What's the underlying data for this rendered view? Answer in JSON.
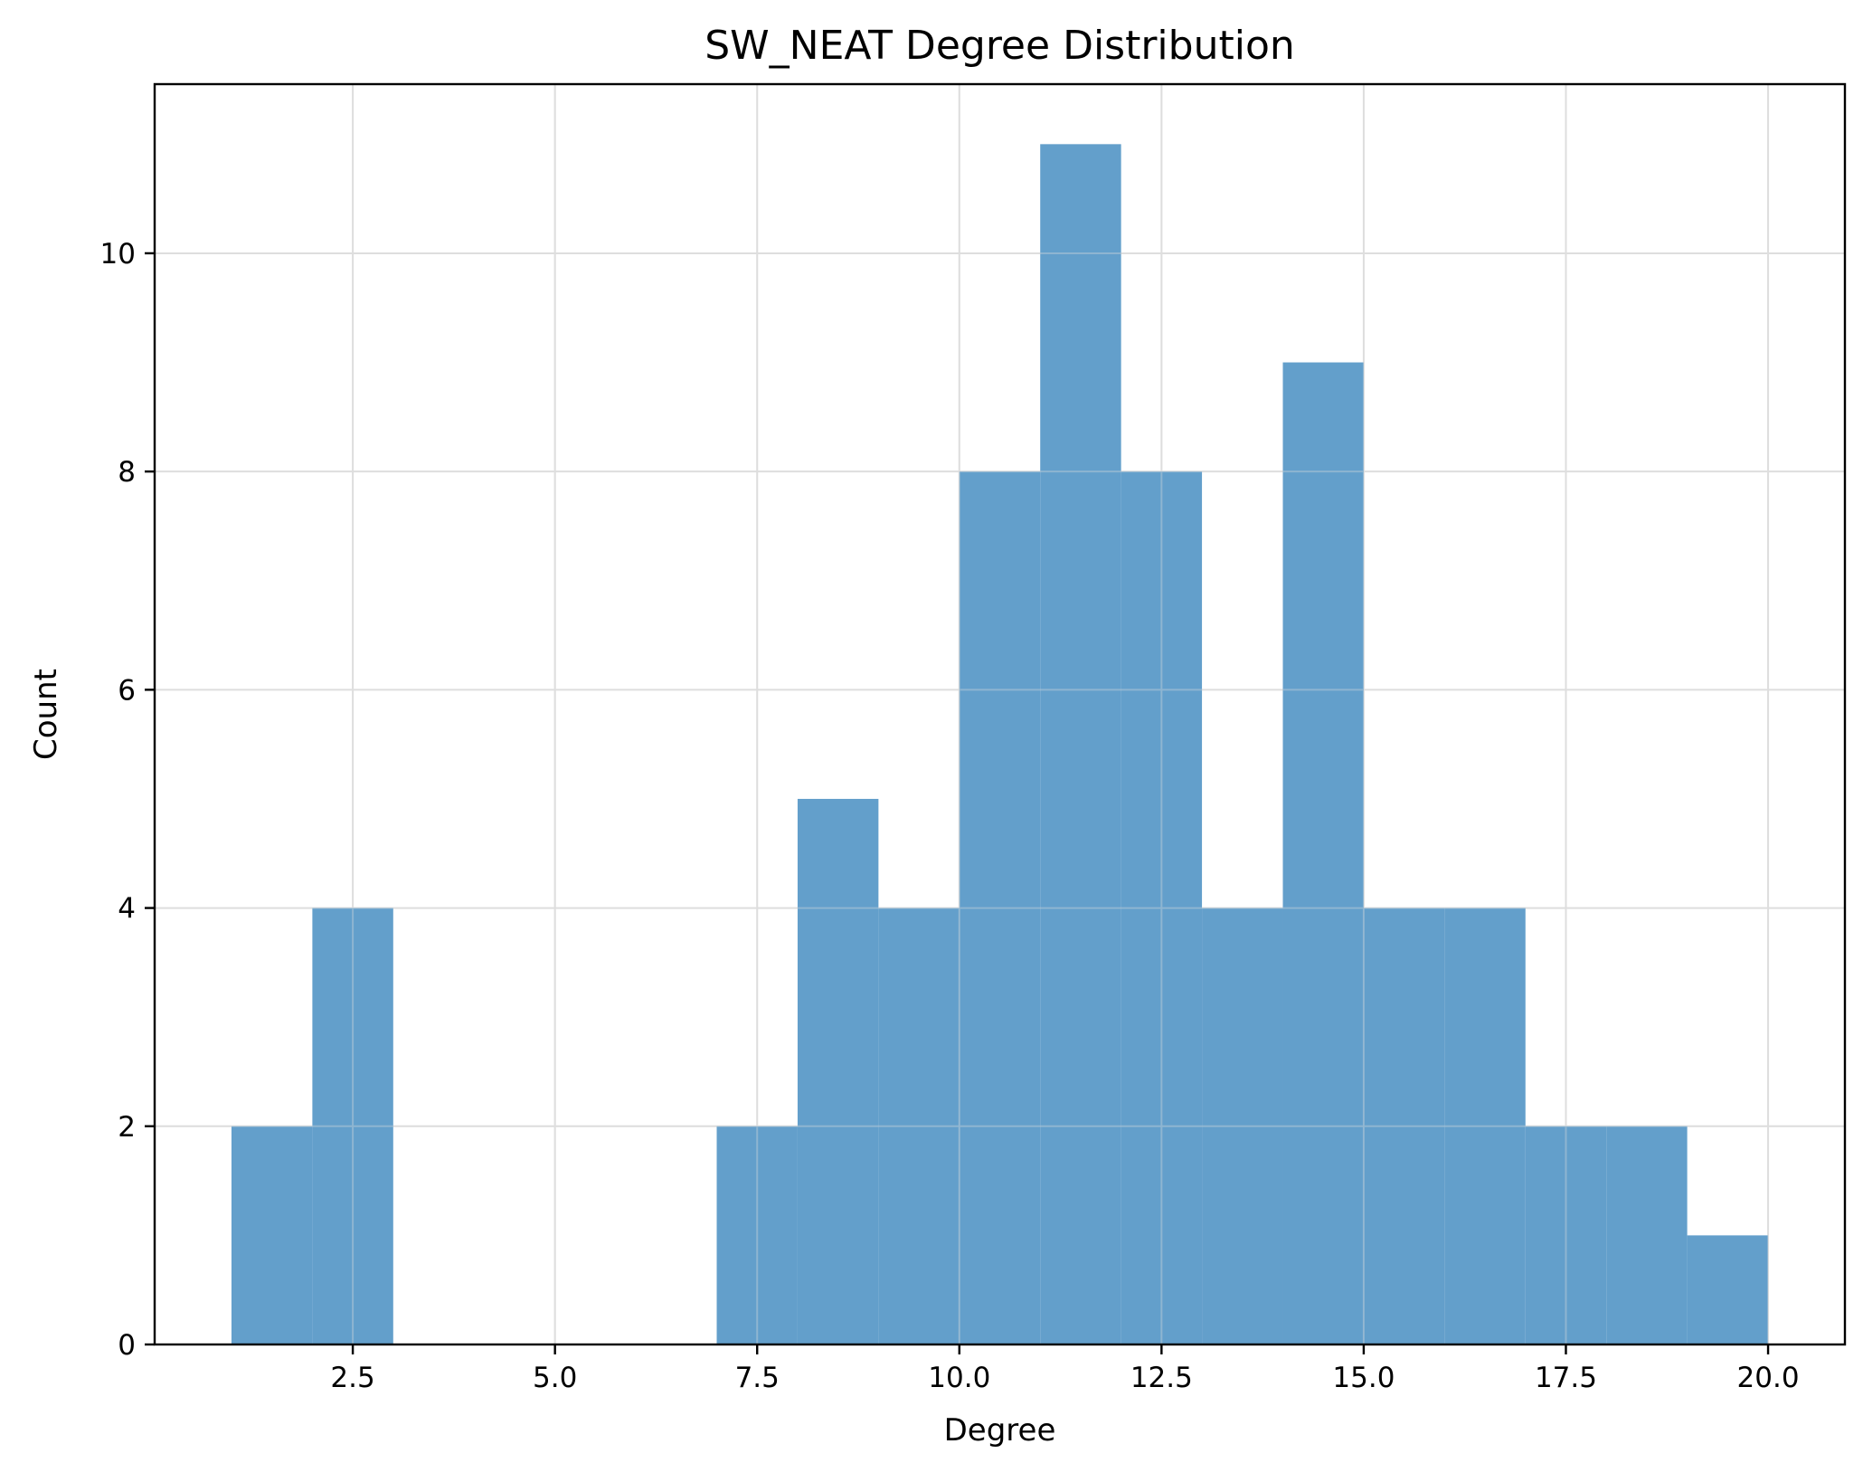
{
  "chart_data": {
    "type": "bar",
    "title": "SW_NEAT Degree Distribution",
    "xlabel": "Degree",
    "ylabel": "Count",
    "xlim": [
      0.05,
      20.95
    ],
    "ylim": [
      0,
      11.55
    ],
    "x_ticks": [
      "2.5",
      "5.0",
      "7.5",
      "10.0",
      "12.5",
      "15.0",
      "17.5",
      "20.0"
    ],
    "y_ticks": [
      "0",
      "2",
      "4",
      "6",
      "8",
      "10"
    ],
    "grid": true,
    "bar_color": "#639fcb",
    "bins": [
      {
        "x0": 1,
        "x1": 2,
        "count": 2
      },
      {
        "x0": 2,
        "x1": 3,
        "count": 4
      },
      {
        "x0": 3,
        "x1": 4,
        "count": 0
      },
      {
        "x0": 4,
        "x1": 5,
        "count": 0
      },
      {
        "x0": 5,
        "x1": 6,
        "count": 0
      },
      {
        "x0": 6,
        "x1": 7,
        "count": 0
      },
      {
        "x0": 7,
        "x1": 8,
        "count": 2
      },
      {
        "x0": 8,
        "x1": 9,
        "count": 5
      },
      {
        "x0": 9,
        "x1": 10,
        "count": 4
      },
      {
        "x0": 10,
        "x1": 11,
        "count": 8
      },
      {
        "x0": 11,
        "x1": 12,
        "count": 11
      },
      {
        "x0": 12,
        "x1": 13,
        "count": 8
      },
      {
        "x0": 13,
        "x1": 14,
        "count": 4
      },
      {
        "x0": 14,
        "x1": 15,
        "count": 9
      },
      {
        "x0": 15,
        "x1": 16,
        "count": 4
      },
      {
        "x0": 16,
        "x1": 17,
        "count": 4
      },
      {
        "x0": 17,
        "x1": 18,
        "count": 2
      },
      {
        "x0": 18,
        "x1": 19,
        "count": 2
      },
      {
        "x0": 19,
        "x1": 20,
        "count": 1
      }
    ]
  }
}
